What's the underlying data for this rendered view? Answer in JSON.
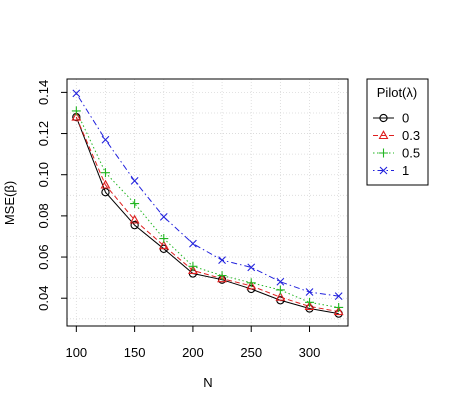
{
  "chart_data": {
    "type": "line",
    "title": "",
    "xlabel": "N",
    "ylabel": "MSE(β)",
    "xlim": [
      92,
      333
    ],
    "ylim": [
      0.0265,
      0.1465
    ],
    "x_ticks": [
      100,
      150,
      200,
      250,
      300
    ],
    "y_ticks": [
      0.04,
      0.06,
      0.08,
      0.1,
      0.12,
      0.14
    ],
    "x_tick_labels": [
      "100",
      "150",
      "200",
      "250",
      "300"
    ],
    "y_tick_labels": [
      "0.04",
      "0.06",
      "0.08",
      "0.10",
      "0.12",
      "0.14"
    ],
    "grid": true,
    "legend_position": "right",
    "legend_title": "Pilot(λ)",
    "x": [
      100,
      125,
      150,
      175,
      200,
      225,
      250,
      275,
      300,
      325
    ],
    "series": [
      {
        "name": "0",
        "color": "#000000",
        "marker": "circle",
        "dash": "solid",
        "values": [
          0.128,
          0.0915,
          0.0755,
          0.064,
          0.052,
          0.049,
          0.0445,
          0.039,
          0.035,
          0.0325
        ]
      },
      {
        "name": "0.3",
        "color": "#df1f1f",
        "marker": "triangle",
        "dash": "dashed",
        "values": [
          0.128,
          0.095,
          0.078,
          0.0655,
          0.0535,
          0.0495,
          0.046,
          0.0405,
          0.036,
          0.0335
        ]
      },
      {
        "name": "0.5",
        "color": "#22b522",
        "marker": "plus",
        "dash": "dotted",
        "values": [
          0.131,
          0.101,
          0.086,
          0.069,
          0.0555,
          0.051,
          0.0475,
          0.044,
          0.038,
          0.0355
        ]
      },
      {
        "name": "1",
        "color": "#2222dd",
        "marker": "cross",
        "dash": "dotdash",
        "values": [
          0.1395,
          0.117,
          0.097,
          0.0795,
          0.0665,
          0.0585,
          0.055,
          0.048,
          0.043,
          0.041
        ]
      }
    ]
  }
}
